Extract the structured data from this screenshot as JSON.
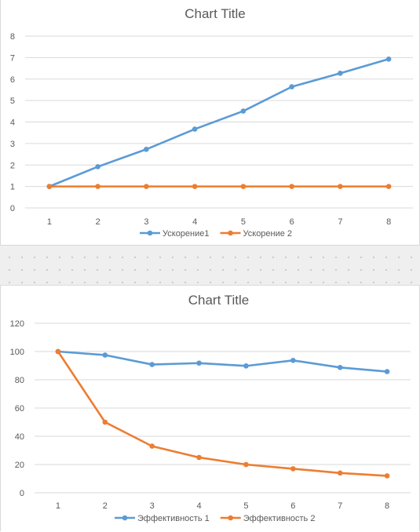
{
  "chart_data": [
    {
      "type": "line",
      "title": "Chart Title",
      "x": [
        1,
        2,
        3,
        4,
        5,
        6,
        7,
        8
      ],
      "ylim": [
        0,
        8
      ],
      "yticks": [
        0,
        1,
        2,
        3,
        4,
        5,
        6,
        7,
        8
      ],
      "grid": true,
      "legend": "bottom",
      "series": [
        {
          "name": "Ускорение1",
          "color": "#5b9bd5",
          "values": [
            1.0,
            1.92,
            2.73,
            3.67,
            4.51,
            5.64,
            6.27,
            6.93
          ]
        },
        {
          "name": "Ускорение 2",
          "color": "#ed7d31",
          "values": [
            1,
            1,
            1,
            1,
            1,
            1,
            1,
            1
          ]
        }
      ]
    },
    {
      "type": "line",
      "title": "Chart Title",
      "x": [
        1,
        2,
        3,
        4,
        5,
        6,
        7,
        8
      ],
      "ylim": [
        0,
        120
      ],
      "yticks": [
        0,
        20,
        40,
        60,
        80,
        100,
        120
      ],
      "grid": true,
      "legend": "bottom",
      "series": [
        {
          "name": "Эффективность 1",
          "color": "#5b9bd5",
          "values": [
            100,
            97.5,
            90.8,
            91.8,
            89.8,
            93.7,
            88.7,
            85.8
          ]
        },
        {
          "name": "Эффективность 2",
          "color": "#ed7d31",
          "values": [
            100,
            50,
            33,
            25,
            20,
            17,
            14,
            12
          ]
        }
      ]
    }
  ]
}
